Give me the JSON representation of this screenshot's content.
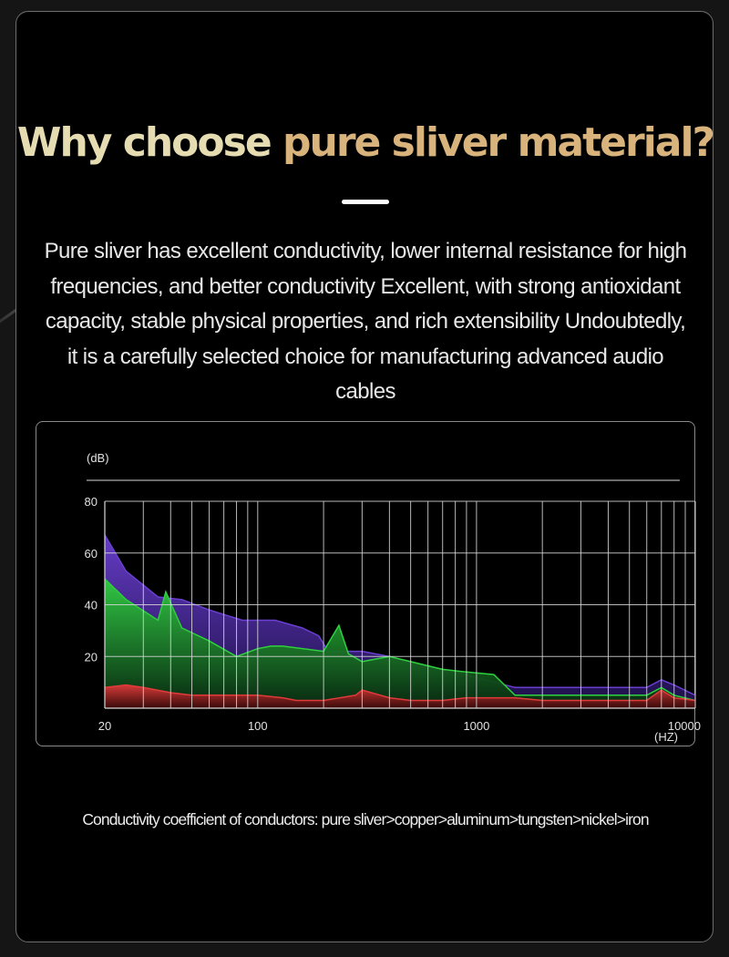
{
  "page": {
    "headline_part1": "Why choose ",
    "headline_part2": "pure sliver material?",
    "intro": "Pure sliver has excellent conductivity, lower internal resistance for high frequencies, and better conductivity Excellent, with strong antioxidant capacity, stable physical properties, and rich extensibility Undoubtedly, it is a carefully selected choice for manufacturing advanced audio cables",
    "footnote": "Conductivity coefficient of conductors: pure sliver>copper>aluminum>tungsten>nickel>iron"
  },
  "colors": {
    "headline_light": "#e6dcb2",
    "headline_gold": "#d9b37c",
    "series_purple": "#6a3fd0",
    "series_green": "#2fcf3f",
    "series_red": "#e03a3a",
    "grid": "#d8d8d8"
  },
  "chart_data": {
    "type": "area",
    "ylabel": "(dB)",
    "xlabel": "(HZ)",
    "x_scale": "log",
    "xlim": [
      20,
      10000
    ],
    "ylim": [
      0,
      80
    ],
    "yticks": [
      20,
      40,
      60,
      80
    ],
    "xticks": [
      20,
      100,
      1000,
      10000
    ],
    "grid": true,
    "series": [
      {
        "color": "#6a3fd0",
        "x": [
          20,
          25,
          35,
          45,
          60,
          85,
          120,
          160,
          190,
          210,
          300,
          400,
          600,
          800,
          1500,
          2500,
          4000,
          6000,
          7000,
          8000,
          10000
        ],
        "values": [
          67,
          53,
          43,
          42,
          38,
          34,
          34,
          31,
          28,
          22,
          22,
          20,
          16,
          14,
          8,
          8,
          8,
          8,
          11,
          9,
          5
        ]
      },
      {
        "color": "#2fcf3f",
        "x": [
          20,
          25,
          35,
          38,
          45,
          60,
          80,
          100,
          115,
          130,
          200,
          235,
          260,
          300,
          400,
          500,
          700,
          900,
          1200,
          1500,
          2500,
          5000,
          6000,
          7000,
          8000,
          10000
        ],
        "values": [
          50,
          42,
          34,
          45,
          31,
          26,
          20,
          23,
          24,
          24,
          22,
          32,
          21,
          18,
          20,
          18,
          15,
          14,
          13,
          5,
          5,
          5,
          5,
          8,
          5,
          3
        ]
      },
      {
        "color": "#e03a3a",
        "x": [
          20,
          25,
          30,
          40,
          50,
          60,
          100,
          130,
          150,
          200,
          280,
          300,
          400,
          500,
          700,
          900,
          1000,
          1500,
          2000,
          3000,
          5000,
          6000,
          7000,
          8000,
          10000
        ],
        "values": [
          8,
          9,
          8,
          6,
          5,
          5,
          5,
          4,
          3,
          3,
          5,
          7,
          4,
          3,
          3,
          4,
          4,
          4,
          3,
          3,
          3,
          3,
          7,
          4,
          3
        ]
      }
    ]
  }
}
